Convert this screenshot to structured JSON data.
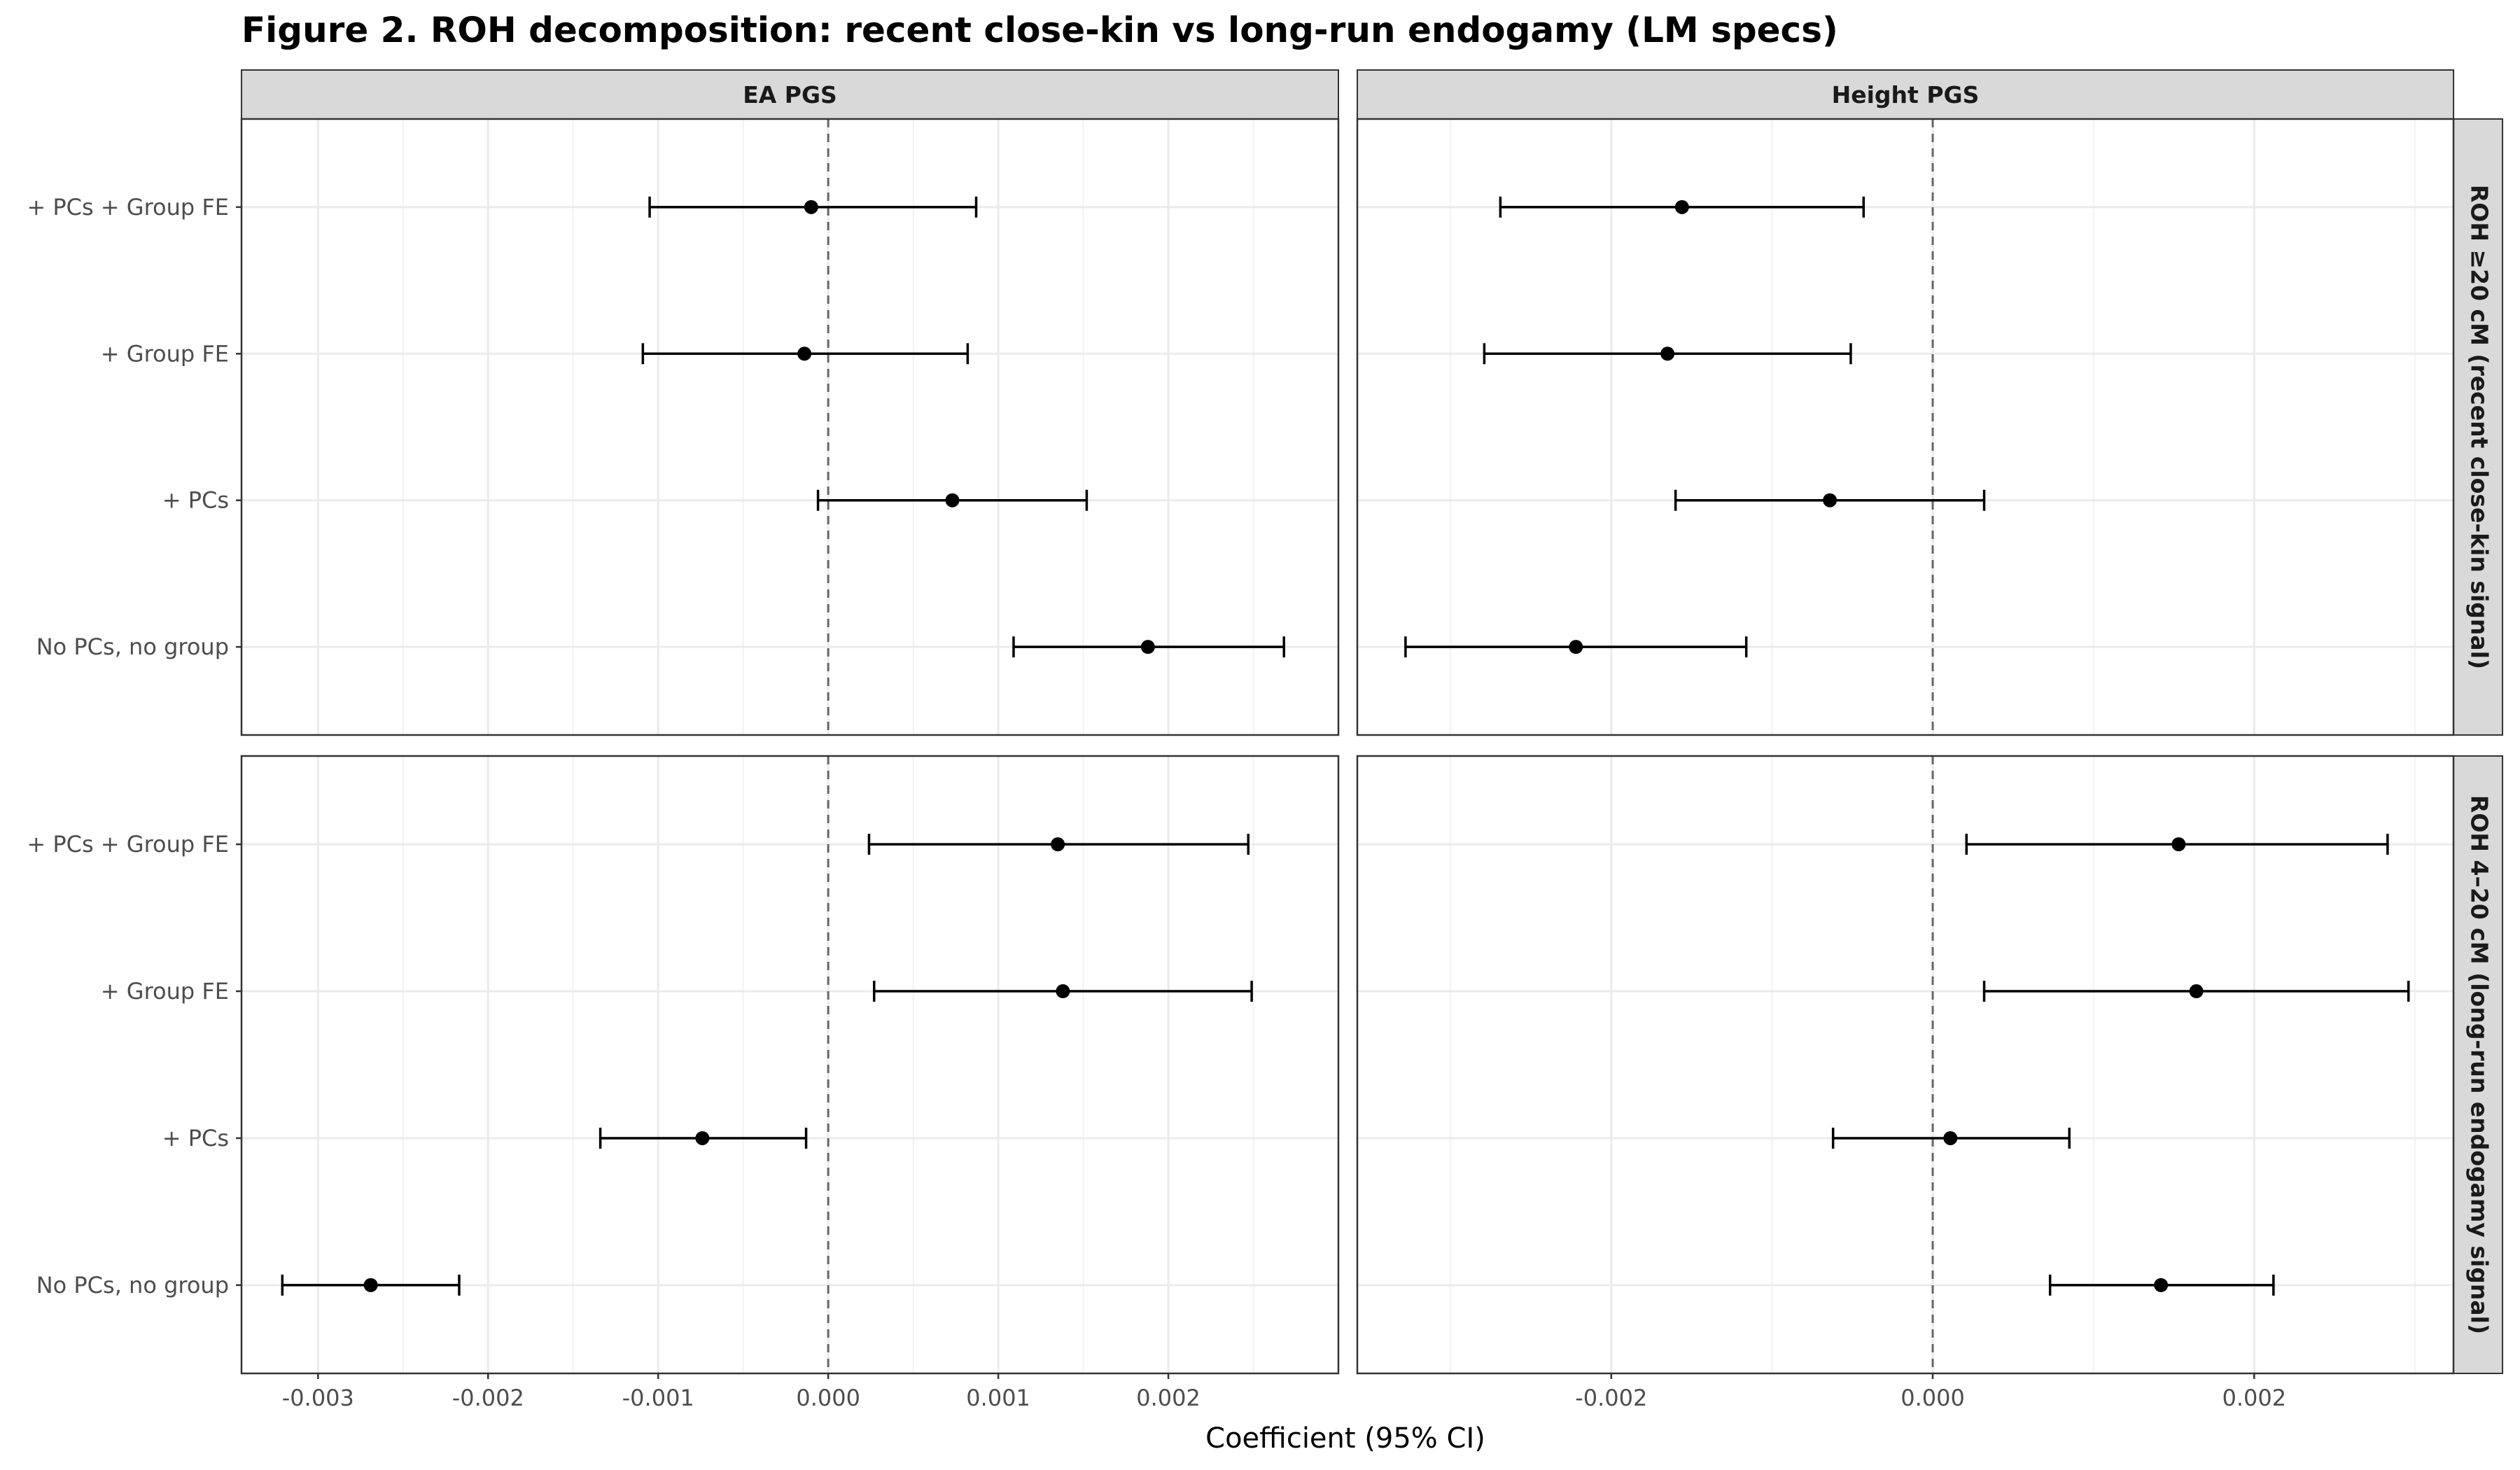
{
  "chart_data": {
    "type": "forest",
    "title": "Figure 2. ROH decomposition: recent close-kin vs long-run endogamy (LM specs)",
    "xlabel": "Coefficient (95% CI)",
    "ylabel": "",
    "specs": [
      "No PCs, no group",
      "+ PCs",
      "+ Group FE",
      "+ PCs + Group FE"
    ],
    "columns": [
      {
        "label": "EA PGS",
        "xlim": [
          -0.00345,
          0.003
        ],
        "ticks": [
          -0.003,
          -0.002,
          -0.001,
          0.0,
          0.001,
          0.002
        ],
        "tick_labels": [
          "-0.003",
          "-0.002",
          "-0.001",
          "0.000",
          "0.001",
          "0.002"
        ]
      },
      {
        "label": "Height PGS",
        "xlim": [
          -0.00358,
          0.00324
        ],
        "ticks": [
          -0.002,
          0.0,
          0.002
        ],
        "tick_labels": [
          "-0.002",
          "0.000",
          "0.002"
        ]
      }
    ],
    "rows": [
      {
        "label": "ROH ≥20 cM (recent close-kin signal)"
      },
      {
        "label": "ROH 4–20 cM (long-run endogamy signal)"
      }
    ],
    "reference_line": 0,
    "panels": [
      {
        "row": 0,
        "col": 0,
        "points": [
          {
            "spec": "No PCs, no group",
            "estimate": 0.00188,
            "lower": 0.00109,
            "upper": 0.00268
          },
          {
            "spec": "+ PCs",
            "estimate": 0.00073,
            "lower": -6e-05,
            "upper": 0.00152
          },
          {
            "spec": "+ Group FE",
            "estimate": -0.00014,
            "lower": -0.00109,
            "upper": 0.00082
          },
          {
            "spec": "+ PCs + Group FE",
            "estimate": -0.0001,
            "lower": -0.00105,
            "upper": 0.00087
          }
        ]
      },
      {
        "row": 0,
        "col": 1,
        "points": [
          {
            "spec": "No PCs, no group",
            "estimate": -0.00222,
            "lower": -0.00328,
            "upper": -0.00116
          },
          {
            "spec": "+ PCs",
            "estimate": -0.00064,
            "lower": -0.0016,
            "upper": 0.00032
          },
          {
            "spec": "+ Group FE",
            "estimate": -0.00165,
            "lower": -0.00279,
            "upper": -0.00051
          },
          {
            "spec": "+ PCs + Group FE",
            "estimate": -0.00156,
            "lower": -0.00269,
            "upper": -0.00043
          }
        ]
      },
      {
        "row": 1,
        "col": 0,
        "points": [
          {
            "spec": "No PCs, no group",
            "estimate": -0.00269,
            "lower": -0.00321,
            "upper": -0.00217
          },
          {
            "spec": "+ PCs",
            "estimate": -0.00074,
            "lower": -0.00134,
            "upper": -0.00013
          },
          {
            "spec": "+ Group FE",
            "estimate": 0.00138,
            "lower": 0.00027,
            "upper": 0.00249
          },
          {
            "spec": "+ PCs + Group FE",
            "estimate": 0.00135,
            "lower": 0.00024,
            "upper": 0.00247
          }
        ]
      },
      {
        "row": 1,
        "col": 1,
        "points": [
          {
            "spec": "No PCs, no group",
            "estimate": 0.00142,
            "lower": 0.00073,
            "upper": 0.00212
          },
          {
            "spec": "+ PCs",
            "estimate": 0.00011,
            "lower": -0.00062,
            "upper": 0.00085
          },
          {
            "spec": "+ Group FE",
            "estimate": 0.00164,
            "lower": 0.00032,
            "upper": 0.00296
          },
          {
            "spec": "+ PCs + Group FE",
            "estimate": 0.00153,
            "lower": 0.00021,
            "upper": 0.00283
          }
        ]
      }
    ]
  }
}
